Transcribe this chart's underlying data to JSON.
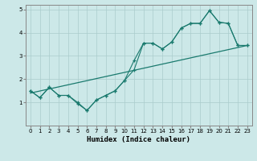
{
  "xlabel": "Humidex (Indice chaleur)",
  "xlim": [
    -0.5,
    23.5
  ],
  "ylim": [
    0,
    5.2
  ],
  "xticks": [
    0,
    1,
    2,
    3,
    4,
    5,
    6,
    7,
    8,
    9,
    10,
    11,
    12,
    13,
    14,
    15,
    16,
    17,
    18,
    19,
    20,
    21,
    22,
    23
  ],
  "yticks": [
    1,
    2,
    3,
    4,
    5
  ],
  "bg_color": "#cce8e8",
  "line_color": "#1a7a6e",
  "grid_color": "#aacccc",
  "series1_x": [
    0,
    1,
    2,
    3,
    4,
    5,
    6,
    7,
    8,
    9,
    10,
    11,
    12,
    13,
    14,
    15,
    16,
    17,
    18,
    19,
    20,
    21,
    22,
    23
  ],
  "series1_y": [
    1.5,
    1.2,
    1.65,
    1.3,
    1.3,
    0.95,
    0.65,
    1.1,
    1.3,
    1.5,
    1.95,
    2.4,
    3.55,
    3.55,
    3.3,
    3.6,
    4.2,
    4.4,
    4.4,
    4.95,
    4.45,
    4.4,
    3.45,
    3.45
  ],
  "series2_x": [
    0,
    1,
    2,
    3,
    4,
    5,
    6,
    7,
    8,
    9,
    10,
    11,
    12,
    13,
    14,
    15,
    16,
    17,
    18,
    19,
    20,
    21,
    22,
    23
  ],
  "series2_y": [
    1.5,
    1.2,
    1.65,
    1.3,
    1.3,
    1.0,
    0.65,
    1.1,
    1.3,
    1.5,
    1.95,
    2.8,
    3.55,
    3.55,
    3.3,
    3.6,
    4.2,
    4.4,
    4.4,
    4.95,
    4.45,
    4.4,
    3.45,
    3.45
  ],
  "trend_x": [
    0,
    23
  ],
  "trend_y": [
    1.4,
    3.45
  ]
}
